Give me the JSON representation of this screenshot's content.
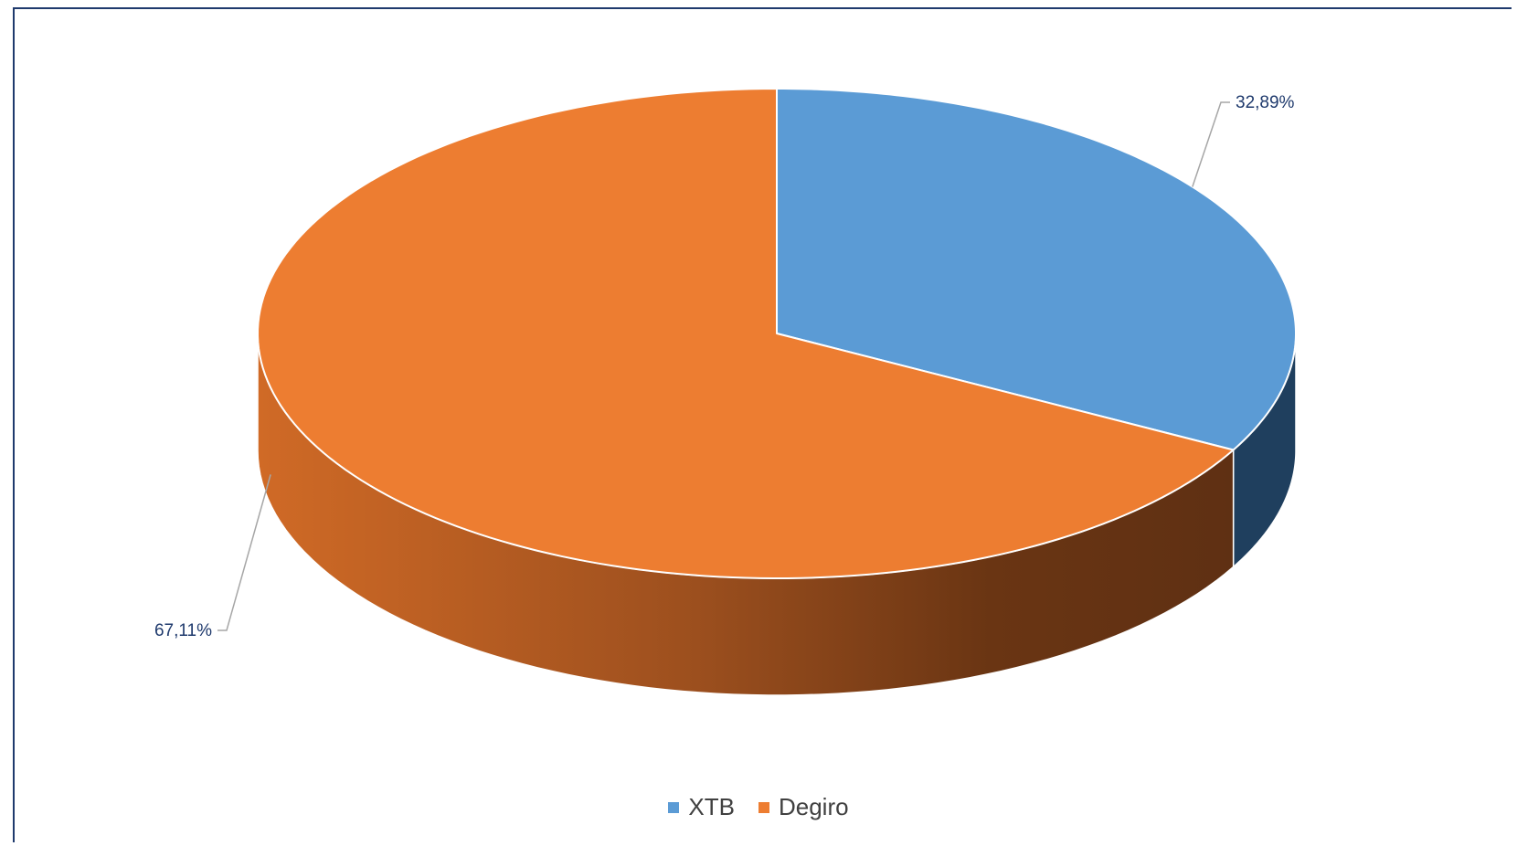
{
  "chart_data": {
    "type": "pie",
    "style": "3d",
    "categories": [
      "XTB",
      "Degiro"
    ],
    "values": [
      32.89,
      67.11
    ],
    "data_labels": [
      "32,89%",
      "67,11%"
    ],
    "colors": [
      "#5b9bd5",
      "#ed7d31"
    ],
    "title": "",
    "legend_position": "bottom"
  },
  "legend": {
    "items": [
      {
        "label": "XTB",
        "color": "#5b9bd5"
      },
      {
        "label": "Degiro",
        "color": "#ed7d31"
      }
    ]
  }
}
